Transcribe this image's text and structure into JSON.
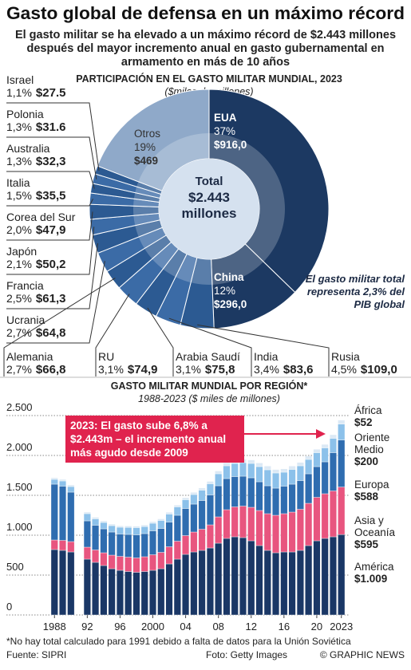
{
  "header": {
    "title": "Gasto global de defensa en un máximo récord",
    "subtitle": "El gasto militar se ha elevado a un máximo récord de $2.443 millones después del mayor incremento anual en gasto gubernamental en armamento en más de 10 años"
  },
  "chart_data": [
    {
      "type": "pie",
      "title": "PARTICIPACIÓN EN EL GASTO MILITAR MUNDIAL, 2023",
      "unit": "($miles de millones)",
      "center_title": "Total",
      "center_text": "$2.443 millones",
      "annotation": "El gasto militar total representa 2,3% del PIB global",
      "categories": [
        "EUA",
        "China",
        "Rusia",
        "India",
        "Arabia Saudí",
        "RU",
        "Alemania",
        "Ucrania",
        "Francia",
        "Japón",
        "Corea del Sur",
        "Italia",
        "Australia",
        "Polonia",
        "Israel",
        "Otros"
      ],
      "values": [
        37,
        12,
        4.5,
        3.4,
        3.1,
        3.1,
        2.7,
        2.7,
        2.5,
        2.1,
        2.0,
        1.5,
        1.3,
        1.3,
        1.1,
        19
      ],
      "value_labels": [
        "37%",
        "12%",
        "4,5%",
        "3,4%",
        "3,1%",
        "3,1%",
        "2,7%",
        "2,7%",
        "2,5%",
        "2,1%",
        "2,0%",
        "1,5%",
        "1,3%",
        "1,3%",
        "1,1%",
        "19%"
      ],
      "amounts": [
        916.0,
        296.0,
        109.0,
        83.6,
        75.8,
        74.9,
        66.8,
        64.8,
        61.3,
        50.2,
        47.9,
        35.5,
        32.3,
        31.6,
        27.5,
        469
      ],
      "amount_labels": [
        "$916,0",
        "$296,0",
        "$109,0",
        "$83,6",
        "$75,8",
        "$74,9",
        "$66,8",
        "$64,8",
        "$61,3",
        "$50,2",
        "$47,9",
        "$35,5",
        "$32,3",
        "$31.6",
        "$27.5",
        "$469"
      ],
      "colors": [
        "#1c3962",
        "#1c3962",
        "#2c5a92",
        "#3b6ba6",
        "#2c5a92",
        "#3b6ba6",
        "#2c5a92",
        "#3b6ba6",
        "#2c5a92",
        "#3b6ba6",
        "#2c5a92",
        "#3b6ba6",
        "#2c5a92",
        "#3b6ba6",
        "#2c5a92",
        "#8fa9c9"
      ]
    },
    {
      "type": "stacked_bar",
      "title": "GASTO MILITAR MUNDIAL POR REGIÓN*",
      "subtitle": "1988-2023 ($ miles de millones)",
      "annotation": "2023: El gasto sube 6,8% a $2.443m – el incremento anual más agudo desde 2009",
      "x": [
        1988,
        1989,
        1990,
        1991,
        1992,
        1993,
        1994,
        1995,
        1996,
        1997,
        1998,
        1999,
        2000,
        2001,
        2002,
        2003,
        2004,
        2005,
        2006,
        2007,
        2008,
        2009,
        2010,
        2011,
        2012,
        2013,
        2014,
        2015,
        2016,
        2017,
        2018,
        2019,
        2020,
        2021,
        2022,
        2023
      ],
      "xlim": [
        1987,
        2024
      ],
      "xticks": [
        {
          "value": 1988,
          "label": "1988"
        },
        {
          "value": 1992,
          "label": "92"
        },
        {
          "value": 1996,
          "label": "96"
        },
        2000,
        {
          "value": 2004,
          "label": "04"
        },
        {
          "value": 2008,
          "label": "08"
        },
        {
          "value": 2012,
          "label": "12"
        },
        {
          "value": 2016,
          "label": "16"
        },
        {
          "value": 2020,
          "label": "20"
        },
        2023
      ],
      "ylim": [
        0,
        2500
      ],
      "yticks": [
        0,
        500,
        {
          "value": 1000,
          "label": "1.000"
        },
        {
          "value": 1500,
          "label": "1.500"
        },
        {
          "value": 2000,
          "label": "2.000"
        },
        {
          "value": 2500,
          "label": "2.500"
        }
      ],
      "grid": true,
      "series": [
        {
          "name": "América",
          "color": "#1a3766",
          "values": [
            820,
            810,
            790,
            null,
            700,
            660,
            620,
            580,
            560,
            545,
            535,
            545,
            560,
            580,
            640,
            700,
            760,
            790,
            810,
            840,
            900,
            960,
            980,
            970,
            930,
            870,
            810,
            780,
            790,
            790,
            810,
            870,
            930,
            960,
            980,
            1009
          ],
          "value_labels": [
            null,
            null,
            null,
            null,
            null,
            null,
            null,
            null,
            null,
            null,
            null,
            null,
            null,
            null,
            null,
            null,
            null,
            null,
            null,
            null,
            null,
            null,
            null,
            null,
            null,
            null,
            null,
            null,
            null,
            null,
            null,
            null,
            null,
            null,
            null,
            "$1.009"
          ]
        },
        {
          "name": "Asia y Oceanía",
          "color": "#e8557f",
          "values": [
            120,
            125,
            130,
            null,
            150,
            155,
            160,
            170,
            175,
            180,
            180,
            185,
            195,
            205,
            215,
            225,
            235,
            250,
            265,
            290,
            330,
            360,
            375,
            395,
            420,
            440,
            460,
            470,
            480,
            500,
            515,
            530,
            545,
            560,
            575,
            595
          ],
          "value_labels": [
            null,
            null,
            null,
            null,
            null,
            null,
            null,
            null,
            null,
            null,
            null,
            null,
            null,
            null,
            null,
            null,
            null,
            null,
            null,
            null,
            null,
            null,
            null,
            null,
            null,
            null,
            null,
            null,
            null,
            null,
            null,
            null,
            null,
            null,
            null,
            "$595"
          ]
        },
        {
          "name": "Europa",
          "color": "#2f6db0",
          "values": [
            700,
            680,
            620,
            null,
            330,
            310,
            300,
            290,
            280,
            285,
            290,
            290,
            300,
            300,
            310,
            325,
            340,
            350,
            360,
            375,
            390,
            390,
            380,
            375,
            370,
            360,
            350,
            340,
            345,
            350,
            360,
            370,
            385,
            400,
            480,
            588
          ],
          "value_labels": [
            null,
            null,
            null,
            null,
            null,
            null,
            null,
            null,
            null,
            null,
            null,
            null,
            null,
            null,
            null,
            null,
            null,
            null,
            null,
            null,
            null,
            null,
            null,
            null,
            null,
            null,
            null,
            null,
            null,
            null,
            null,
            null,
            null,
            null,
            null,
            "$588"
          ]
        },
        {
          "name": "Oriente Medio",
          "color": "#8cc1ea",
          "values": [
            60,
            65,
            70,
            null,
            90,
            80,
            80,
            80,
            85,
            88,
            90,
            88,
            95,
            100,
            100,
            105,
            110,
            120,
            130,
            140,
            150,
            160,
            165,
            170,
            180,
            190,
            200,
            190,
            175,
            185,
            185,
            180,
            175,
            175,
            180,
            200
          ],
          "value_labels": [
            null,
            null,
            null,
            null,
            null,
            null,
            null,
            null,
            null,
            null,
            null,
            null,
            null,
            null,
            null,
            null,
            null,
            null,
            null,
            null,
            null,
            null,
            null,
            null,
            null,
            null,
            null,
            null,
            null,
            null,
            null,
            null,
            null,
            null,
            null,
            "$200"
          ]
        },
        {
          "name": "África",
          "color": "#dce9f5",
          "values": [
            20,
            20,
            20,
            null,
            20,
            20,
            20,
            20,
            18,
            18,
            18,
            20,
            20,
            20,
            22,
            23,
            25,
            27,
            28,
            30,
            35,
            38,
            40,
            42,
            44,
            46,
            48,
            44,
            42,
            42,
            42,
            42,
            43,
            44,
            45,
            52
          ],
          "value_labels": [
            null,
            null,
            null,
            null,
            null,
            null,
            null,
            null,
            null,
            null,
            null,
            null,
            null,
            null,
            null,
            null,
            null,
            null,
            null,
            null,
            null,
            null,
            null,
            null,
            null,
            null,
            null,
            null,
            null,
            null,
            null,
            null,
            null,
            null,
            null,
            "$52"
          ]
        }
      ]
    }
  ],
  "footer": {
    "note": "*No hay total calculado para 1991 debido a falta de datos para la Unión Soviética",
    "source": "Fuente: SIPRI",
    "photo": "Foto: Getty Images",
    "credit": "© GRAPHIC NEWS"
  }
}
